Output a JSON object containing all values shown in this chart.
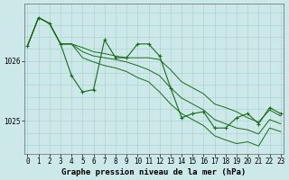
{
  "title": "Graphe pression niveau de la mer (hPa)",
  "bg_color": "#cce8e8",
  "grid_color": "#aad4d4",
  "line_color": "#1a6b1a",
  "marker_color": "#1a6b1a",
  "y_ticks": [
    1025,
    1026
  ],
  "ylim": [
    1024.45,
    1026.95
  ],
  "xlim": [
    -0.3,
    23.3
  ],
  "series_wavy": [
    1026.25,
    1026.72,
    1026.62,
    1026.28,
    1025.75,
    1025.48,
    1025.52,
    1026.35,
    1026.05,
    1026.05,
    1026.28,
    1026.28,
    1026.08,
    1025.55,
    1025.05,
    1025.12,
    1025.15,
    1024.88,
    1024.88,
    1025.05,
    1025.12,
    1024.95,
    1025.22,
    1025.12
  ],
  "series_trend1": [
    1026.25,
    1026.72,
    1026.62,
    1026.28,
    1026.28,
    1026.22,
    1026.15,
    1026.12,
    1026.08,
    1026.05,
    1026.05,
    1026.05,
    1026.02,
    1025.85,
    1025.65,
    1025.55,
    1025.45,
    1025.28,
    1025.22,
    1025.15,
    1025.05,
    1024.98,
    1025.18,
    1025.08
  ],
  "series_trend2": [
    1026.25,
    1026.72,
    1026.62,
    1026.28,
    1026.28,
    1026.15,
    1026.08,
    1026.05,
    1026.02,
    1025.98,
    1025.92,
    1025.85,
    1025.75,
    1025.55,
    1025.38,
    1025.28,
    1025.18,
    1025.02,
    1024.95,
    1024.88,
    1024.85,
    1024.78,
    1025.02,
    1024.95
  ],
  "series_trend3": [
    1026.25,
    1026.72,
    1026.62,
    1026.28,
    1026.28,
    1026.05,
    1025.98,
    1025.92,
    1025.88,
    1025.82,
    1025.72,
    1025.65,
    1025.48,
    1025.28,
    1025.12,
    1025.02,
    1024.92,
    1024.75,
    1024.68,
    1024.62,
    1024.65,
    1024.58,
    1024.88,
    1024.82
  ],
  "font_size": 6.5,
  "tick_fontsize": 5.5
}
